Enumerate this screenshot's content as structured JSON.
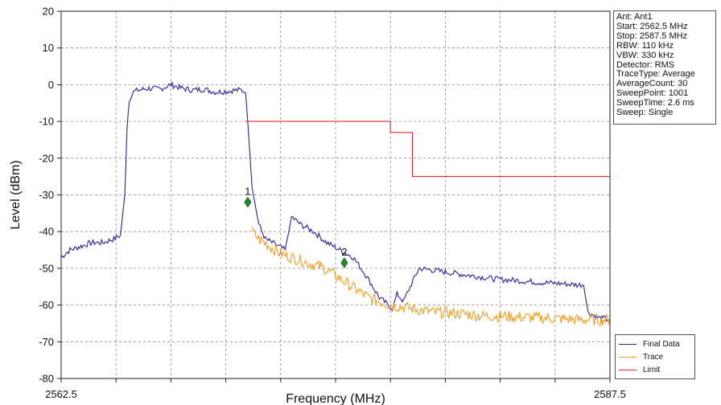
{
  "chart_data": {
    "type": "line",
    "title": "",
    "xlabel": "Frequency (MHz)",
    "ylabel": "Level (dBm)",
    "xlim": [
      2562.5,
      2587.5
    ],
    "ylim": [
      -80,
      20
    ],
    "x_tick_labels": [
      "2562.5",
      "2587.5"
    ],
    "y_ticks": [
      20,
      10,
      0,
      -10,
      -20,
      -30,
      -40,
      -50,
      -60,
      -70,
      -80
    ],
    "grid": true,
    "legend_position": "bottom-right",
    "series": [
      {
        "name": "Final Data",
        "color": "#2b1fa8",
        "x": [
          2562.5,
          2562.9,
          2563.4,
          2563.9,
          2564.4,
          2564.9,
          2565.2,
          2565.4,
          2565.5,
          2565.6,
          2565.8,
          2566.0,
          2566.5,
          2567.0,
          2567.5,
          2568.0,
          2568.5,
          2569.0,
          2569.5,
          2570.0,
          2570.4,
          2570.7,
          2570.9,
          2571.0,
          2571.2,
          2571.5,
          2571.8,
          2572.1,
          2572.4,
          2572.7,
          2573.0,
          2573.4,
          2574.0,
          2574.6,
          2575.2,
          2575.8,
          2576.4,
          2577.0,
          2577.4,
          2577.6,
          2577.8,
          2578.1,
          2578.4,
          2578.8,
          2579.4,
          2580.0,
          2580.6,
          2581.2,
          2581.8,
          2582.4,
          2583.0,
          2583.6,
          2584.2,
          2584.8,
          2585.4,
          2586.0,
          2586.3,
          2586.5,
          2587.0,
          2587.5
        ],
        "y": [
          -47,
          -45,
          -44,
          -43,
          -43,
          -42,
          -41,
          -30,
          -12,
          -4,
          -2,
          -1.5,
          -1,
          -1.2,
          0,
          -1,
          -1.5,
          -1.2,
          -2,
          -1.8,
          -1.5,
          -1.5,
          -2,
          -10,
          -28,
          -38,
          -42,
          -43,
          -44,
          -45,
          -36,
          -38,
          -40,
          -43,
          -45,
          -47,
          -52,
          -58,
          -60,
          -61,
          -57,
          -59,
          -55,
          -50,
          -50.5,
          -51,
          -51.5,
          -52,
          -52.5,
          -53,
          -53.2,
          -53.5,
          -53.8,
          -54,
          -54.2,
          -54.5,
          -54.5,
          -62,
          -63.5,
          -64
        ]
      },
      {
        "name": "Trace",
        "color": "#f39c1f",
        "x": [
          2571.2,
          2571.5,
          2572.0,
          2572.5,
          2573.0,
          2573.5,
          2574.0,
          2574.5,
          2575.0,
          2575.5,
          2576.0,
          2576.5,
          2577.0,
          2577.5,
          2578.0,
          2578.5,
          2579.0,
          2579.5,
          2580.0,
          2580.5,
          2581.0,
          2581.5,
          2582.0,
          2582.5,
          2583.0,
          2583.5,
          2584.0,
          2584.5,
          2585.0,
          2585.5,
          2586.0,
          2586.5,
          2587.0,
          2587.5
        ],
        "y": [
          -40,
          -42,
          -44,
          -46,
          -47,
          -48,
          -49,
          -50,
          -52,
          -54,
          -56,
          -58,
          -59,
          -60,
          -60.5,
          -61,
          -61.5,
          -62,
          -62,
          -62.3,
          -62.5,
          -62.8,
          -63,
          -63,
          -63.2,
          -63.3,
          -63.5,
          -63.5,
          -63.7,
          -63.8,
          -64,
          -64,
          -64,
          -64
        ]
      },
      {
        "name": "Limit",
        "color": "#e02a2a",
        "x": [
          2570.9,
          2577.5,
          2577.5,
          2578.5,
          2578.5,
          2587.5
        ],
        "y": [
          -10,
          -10,
          -13,
          -13,
          -25,
          -25
        ]
      }
    ],
    "markers": [
      {
        "label": "1",
        "x": 2571.0,
        "y": -32
      },
      {
        "label": "2",
        "x": 2575.4,
        "y": -48.5
      }
    ]
  },
  "info": {
    "lines": [
      "Ant: Ant1",
      "Start: 2562.5 MHz",
      "Stop: 2587.5 MHz",
      "RBW: 110 kHz",
      "VBW: 330 kHz",
      "Detector: RMS",
      "TraceType: Average",
      "AverageCount: 30",
      "SweepPoint: 1001",
      "SweepTime: 2.6 ms",
      "Sweep: Single"
    ]
  }
}
